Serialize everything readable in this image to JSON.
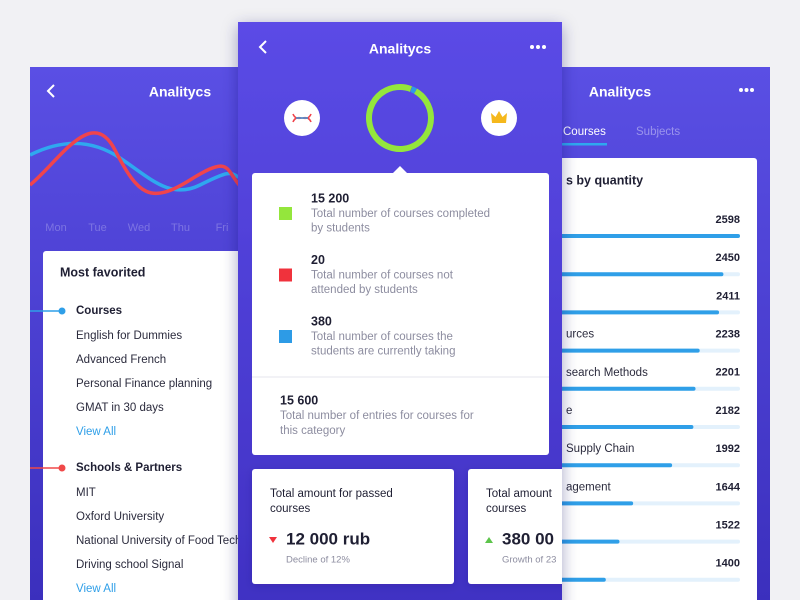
{
  "left_screen": {
    "title": "Analitycs",
    "days": [
      "Mon",
      "Tue",
      "Wed",
      "Thu",
      "Fri"
    ],
    "card_title": "Most favorited",
    "groups": [
      {
        "name": "Courses",
        "color": "#2f9fe8",
        "items": [
          "English for Dummies",
          "Advanced French",
          "Personal Finance planning",
          "GMAT in 30 days"
        ],
        "link": "View All"
      },
      {
        "name": "Schools & Partners",
        "color": "#f04848",
        "items": [
          "MIT",
          "Oxford University",
          "National University of Food Tech",
          "Driving school Signal"
        ],
        "link": "View All"
      }
    ]
  },
  "right_screen": {
    "title": "Analitycs",
    "tabs": [
      "Courses",
      "Subjects"
    ],
    "card_title": "s by quantity",
    "rows": [
      {
        "label": null,
        "value": 2598
      },
      {
        "label": null,
        "value": 2450
      },
      {
        "label": null,
        "value": 2411
      },
      {
        "label": "urces",
        "value": 2238
      },
      {
        "label": "search Methods",
        "value": 2201
      },
      {
        "label": "e",
        "value": 2182
      },
      {
        "label": "Supply Chain",
        "value": 1992
      },
      {
        "label": "agement",
        "value": 1644
      },
      {
        "label": null,
        "value": 1522
      },
      {
        "label": null,
        "value": 1400
      }
    ]
  },
  "center_screen": {
    "title": "Analitycs",
    "stats": [
      {
        "count": 15200,
        "count_label": "15 200",
        "lines": [
          "Total number of courses completed",
          "by students"
        ],
        "color": "#94e63c"
      },
      {
        "count": 20,
        "count_label": "20",
        "lines": [
          "Total number of courses not",
          "attended by students"
        ],
        "color": "#f0323c"
      },
      {
        "count": 380,
        "count_label": "380",
        "lines": [
          "Total number of courses the",
          "students are currently taking"
        ],
        "color": "#2d9be6"
      }
    ],
    "total": {
      "count": 15600,
      "count_label": "15 600",
      "lines": [
        "Total number of entries for courses for",
        "this category"
      ]
    },
    "cards": [
      {
        "lines": [
          "Total amount for passed",
          "courses"
        ],
        "amount": "12 000 rub",
        "change": "Decline of 12%",
        "trend": "down"
      },
      {
        "lines": [
          "Total amount",
          "courses"
        ],
        "amount": "380 00",
        "change": "Growth of 23",
        "trend": "up"
      }
    ]
  }
}
